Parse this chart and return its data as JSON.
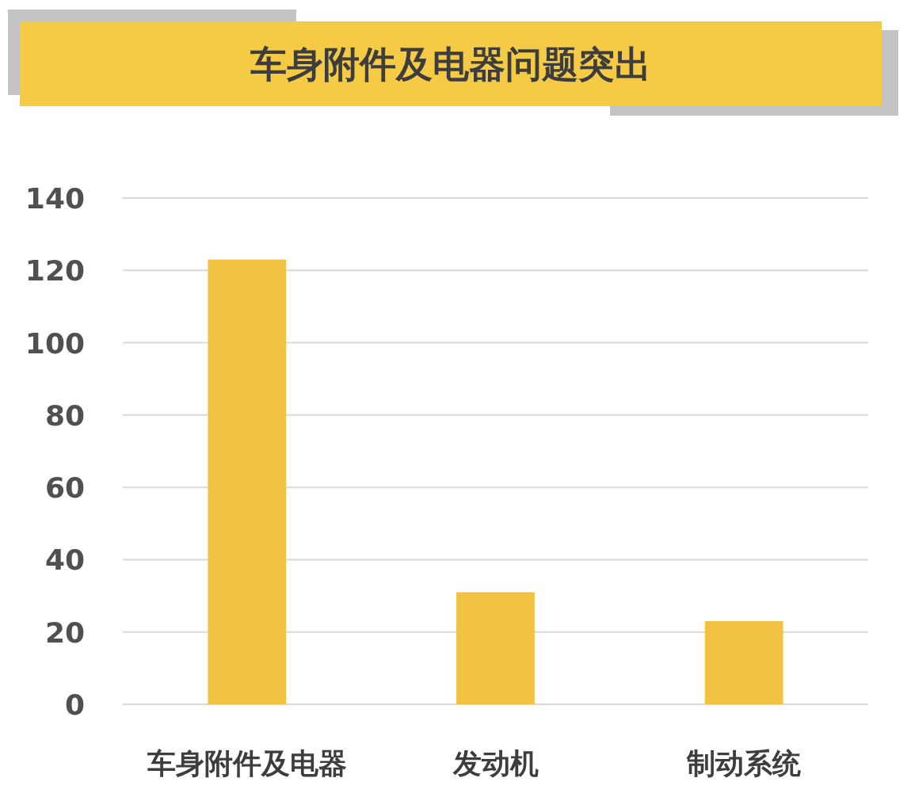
{
  "chart_data": {
    "type": "bar",
    "title": "车身附件及电器问题突出",
    "categories": [
      "车身附件及电器",
      "发动机",
      "制动系统"
    ],
    "values": [
      123,
      31,
      23
    ],
    "color": "#f2c243",
    "ylim": [
      0,
      140
    ],
    "yticks": [
      0,
      20,
      40,
      60,
      80,
      100,
      120,
      140
    ],
    "grid": "y"
  }
}
